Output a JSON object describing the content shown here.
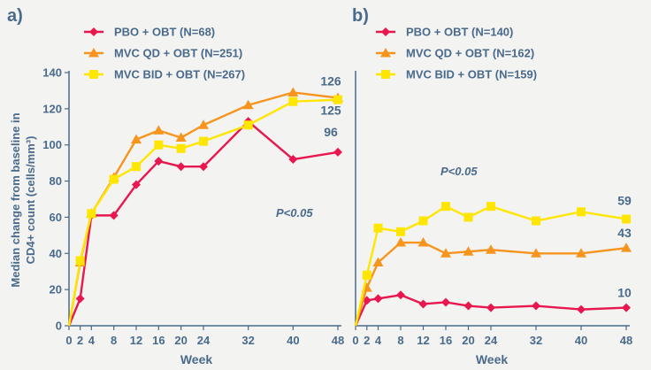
{
  "chart_data": [
    {
      "panel_label": "a)",
      "type": "line",
      "ylabel_line1": "Median change from baseline in",
      "ylabel_line2": "CD4+ count (cells/mm³)",
      "xlabel": "Week",
      "ylim": [
        0,
        140
      ],
      "yticks": [
        "0",
        "20",
        "40",
        "60",
        "80",
        "100",
        "120",
        "140"
      ],
      "xticks": [
        "0",
        "2",
        "4",
        "8",
        "12",
        "16",
        "20",
        "24",
        "32",
        "40",
        "48"
      ],
      "annotation": "P<0.05",
      "series": [
        {
          "name": "PBO + OBT (N=68)",
          "color": "#e8174f",
          "marker": "diamond",
          "x": [
            0,
            2,
            4,
            8,
            12,
            16,
            20,
            24,
            32,
            40,
            48
          ],
          "y": [
            0,
            15,
            61,
            61,
            78,
            91,
            88,
            88,
            113,
            92,
            96
          ],
          "end_label": "96"
        },
        {
          "name": "MVC QD + OBT (N=251)",
          "color": "#f7941d",
          "marker": "triangle",
          "x": [
            0,
            2,
            4,
            8,
            12,
            16,
            20,
            24,
            32,
            40,
            48
          ],
          "y": [
            0,
            35,
            62,
            82,
            103,
            108,
            104,
            111,
            122,
            129,
            126
          ],
          "end_label": "126"
        },
        {
          "name": "MVC BID + OBT (N=267)",
          "color": "#ffe600",
          "marker": "square",
          "x": [
            0,
            2,
            4,
            8,
            12,
            16,
            20,
            24,
            32,
            40,
            48
          ],
          "y": [
            0,
            36,
            62,
            81,
            88,
            100,
            98,
            102,
            111,
            124,
            125
          ],
          "end_label": "125"
        }
      ]
    },
    {
      "panel_label": "b)",
      "type": "line",
      "xlabel": "Week",
      "ylim": [
        0,
        140
      ],
      "xticks": [
        "0",
        "2",
        "4",
        "8",
        "12",
        "16",
        "20",
        "24",
        "32",
        "40",
        "48"
      ],
      "annotation": "P<0.05",
      "series": [
        {
          "name": "PBO + OBT (N=140)",
          "color": "#e8174f",
          "marker": "diamond",
          "x": [
            0,
            2,
            4,
            8,
            12,
            16,
            20,
            24,
            32,
            40,
            48
          ],
          "y": [
            0,
            14,
            15,
            17,
            12,
            13,
            11,
            10,
            11,
            9,
            10
          ],
          "end_label": "10"
        },
        {
          "name": "MVC QD + OBT (N=162)",
          "color": "#f7941d",
          "marker": "triangle",
          "x": [
            0,
            2,
            4,
            8,
            12,
            16,
            20,
            24,
            32,
            40,
            48
          ],
          "y": [
            0,
            21,
            35,
            46,
            46,
            40,
            41,
            42,
            40,
            40,
            43
          ],
          "end_label": "43"
        },
        {
          "name": "MVC BID + OBT (N=159)",
          "color": "#ffe600",
          "marker": "square",
          "x": [
            0,
            2,
            4,
            8,
            12,
            16,
            20,
            24,
            32,
            40,
            48
          ],
          "y": [
            0,
            28,
            54,
            52,
            58,
            66,
            60,
            66,
            58,
            63,
            59
          ],
          "end_label": "59"
        }
      ]
    }
  ]
}
